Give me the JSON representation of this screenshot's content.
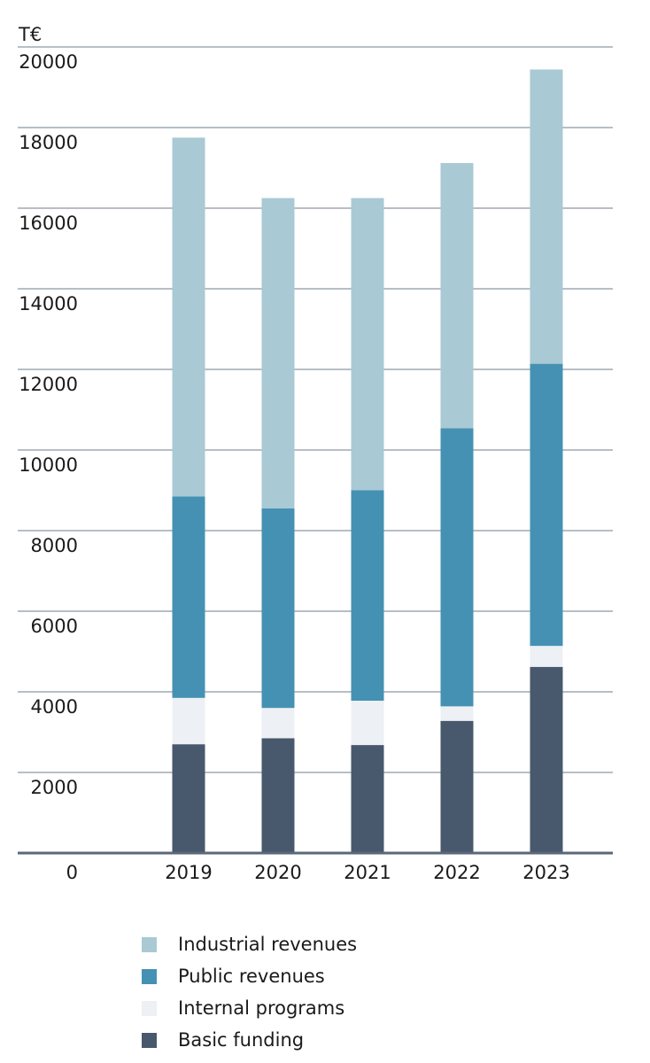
{
  "chart_data": {
    "type": "bar",
    "stacked": true,
    "unit_label": "T€",
    "title": "",
    "xlabel": "",
    "ylabel": "T€",
    "ylim": [
      0,
      20000
    ],
    "y_ticks": [
      "0",
      "2000",
      "4000",
      "6000",
      "8000",
      "10000",
      "12000",
      "14000",
      "16000",
      "18000",
      "20000"
    ],
    "grid": true,
    "legend_position": "bottom",
    "categories": [
      "2019",
      "2020",
      "2021",
      "2022",
      "2023"
    ],
    "series": [
      {
        "name": "Basic funding",
        "color": "#48586d",
        "values": [
          2700,
          2850,
          2680,
          3280,
          4620
        ]
      },
      {
        "name": "Internal programs",
        "color": "#edf0f4",
        "values": [
          1150,
          750,
          1100,
          360,
          520
        ]
      },
      {
        "name": "Public revenues",
        "color": "#4591b3",
        "values": [
          5000,
          4950,
          5220,
          6900,
          7000
        ]
      },
      {
        "name": "Industrial revenues",
        "color": "#a9c9d4",
        "values": [
          8900,
          7700,
          7250,
          6580,
          7300
        ]
      }
    ],
    "legend_order": [
      "Industrial revenues",
      "Public revenues",
      "Internal programs",
      "Basic funding"
    ]
  }
}
